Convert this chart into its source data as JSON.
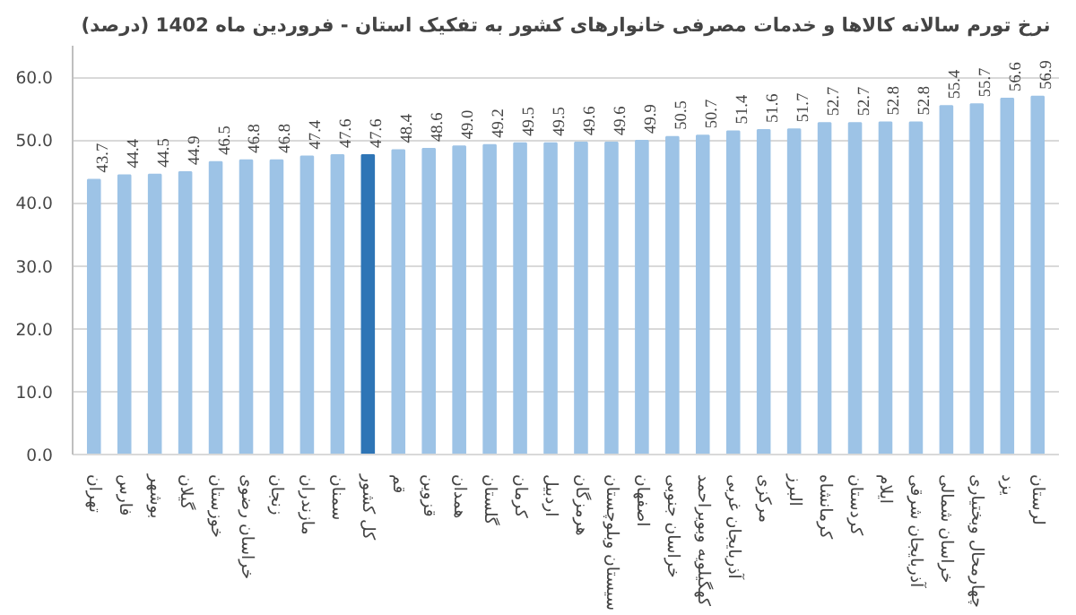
{
  "chart_data": {
    "type": "bar",
    "title": "نرخ تورم سالانه کالاها و خدمات مصرفی خانوارهای کشور به تفکیک استان - فروردین ماه 1402 (درصد)",
    "categories": [
      "تهران",
      "فارس",
      "بوشهر",
      "گیلان",
      "خوزستان",
      "خراسان رضوی",
      "زنجان",
      "مازندران",
      "سمنان",
      "کل کشور",
      "قم",
      "قزوین",
      "همدان",
      "گلستان",
      "کرمان",
      "اردبیل",
      "هرمزگان",
      "سیستان وبلوچستان",
      "اصفهان",
      "خراسان جنوبی",
      "کهگیلویه وبویراحمد",
      "آذربایجان غربی",
      "مرکزی",
      "البرز",
      "کرمانشاه",
      "کردستان",
      "ایلام",
      "آذربایجان شرقی",
      "خراسان شمالی",
      "چهارمحال وبختیاری",
      "یزد",
      "لرستان"
    ],
    "values": [
      43.7,
      44.4,
      44.5,
      44.9,
      46.5,
      46.8,
      46.8,
      47.4,
      47.6,
      47.6,
      48.4,
      48.6,
      49.0,
      49.2,
      49.5,
      49.5,
      49.6,
      49.6,
      49.9,
      50.5,
      50.7,
      51.4,
      51.6,
      51.7,
      52.7,
      52.7,
      52.8,
      52.8,
      55.4,
      55.7,
      56.6,
      56.9
    ],
    "colors": [
      "#9dc3e6",
      "#9dc3e6",
      "#9dc3e6",
      "#9dc3e6",
      "#9dc3e6",
      "#9dc3e6",
      "#9dc3e6",
      "#9dc3e6",
      "#9dc3e6",
      "#2e75b6",
      "#9dc3e6",
      "#9dc3e6",
      "#9dc3e6",
      "#9dc3e6",
      "#9dc3e6",
      "#9dc3e6",
      "#9dc3e6",
      "#9dc3e6",
      "#9dc3e6",
      "#9dc3e6",
      "#9dc3e6",
      "#9dc3e6",
      "#9dc3e6",
      "#9dc3e6",
      "#9dc3e6",
      "#9dc3e6",
      "#9dc3e6",
      "#9dc3e6",
      "#9dc3e6",
      "#9dc3e6",
      "#9dc3e6",
      "#9dc3e6"
    ],
    "value_labels": [
      "43.7",
      "44.4",
      "44.5",
      "44.9",
      "46.5",
      "46.8",
      "46.8",
      "47.4",
      "47.6",
      "47.6",
      "48.4",
      "48.6",
      "49.0",
      "49.2",
      "49.5",
      "49.5",
      "49.6",
      "49.6",
      "49.9",
      "50.5",
      "50.7",
      "51.4",
      "51.6",
      "51.7",
      "52.7",
      "52.7",
      "52.8",
      "52.8",
      "55.4",
      "55.7",
      "56.6",
      "56.9"
    ],
    "ylim": [
      0,
      65
    ],
    "yticks": [
      {
        "value": 0,
        "label": "0.0"
      },
      {
        "value": 10,
        "label": "10.0"
      },
      {
        "value": 20,
        "label": "20.0"
      },
      {
        "value": 30,
        "label": "30.0"
      },
      {
        "value": 40,
        "label": "40.0"
      },
      {
        "value": 50,
        "label": "50.0"
      },
      {
        "value": 60,
        "label": "60.0"
      }
    ],
    "grid": "y"
  }
}
